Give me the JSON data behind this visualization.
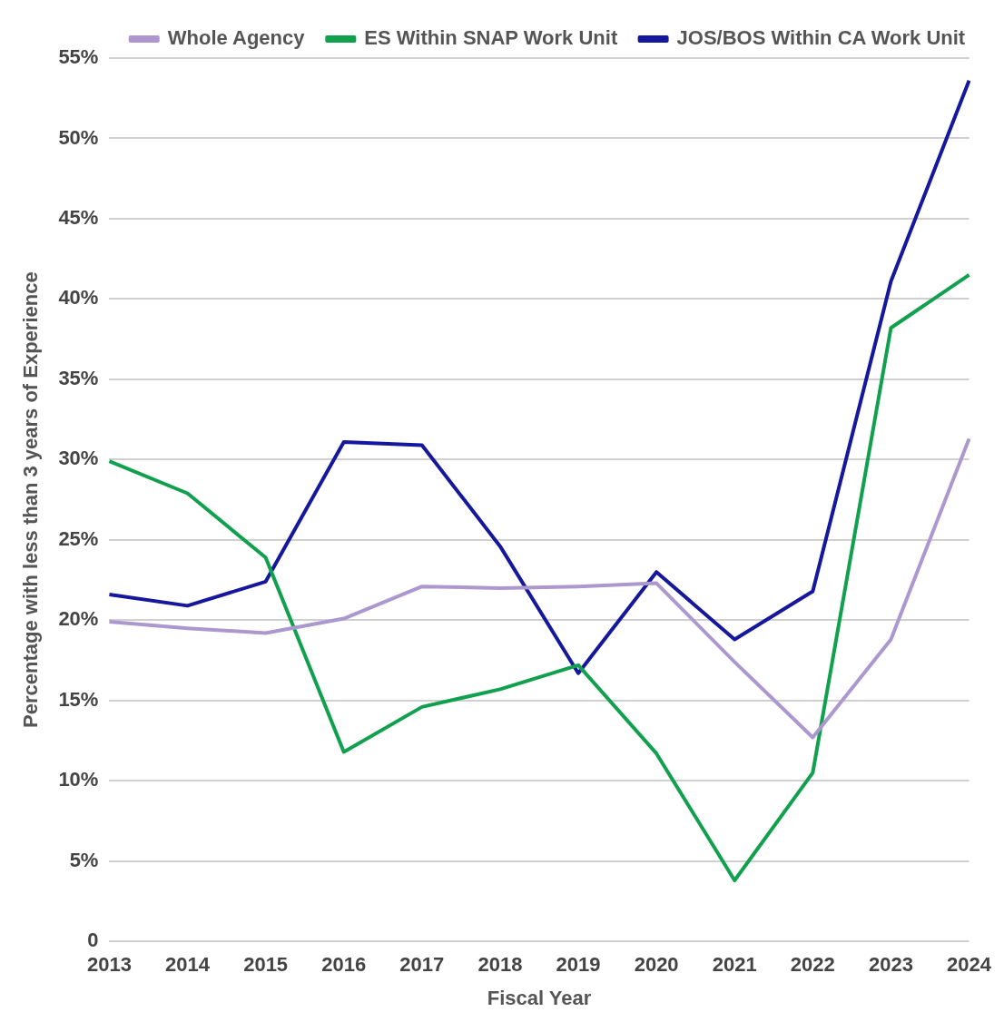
{
  "chart_data": {
    "type": "line",
    "xlabel": "Fiscal Year",
    "ylabel": "Percentage with less than 3 years of Experience",
    "categories": [
      "2013",
      "2014",
      "2015",
      "2016",
      "2017",
      "2018",
      "2019",
      "2020",
      "2021",
      "2022",
      "2023",
      "2024"
    ],
    "series": [
      {
        "name": "Whole Agency",
        "color": "#ac98cf",
        "values": [
          19.9,
          19.5,
          19.2,
          20.1,
          22.1,
          22.0,
          22.1,
          22.3,
          17.4,
          12.7,
          18.8,
          31.3
        ]
      },
      {
        "name": "ES Within SNAP Work Unit",
        "color": "#10a04e",
        "values": [
          29.9,
          27.9,
          23.9,
          11.8,
          14.6,
          15.7,
          17.2,
          11.7,
          3.8,
          10.5,
          38.2,
          41.5
        ]
      },
      {
        "name": "JOS/BOS Within CA Work Unit",
        "color": "#15179c",
        "values": [
          21.6,
          20.9,
          22.4,
          31.1,
          30.9,
          24.6,
          16.7,
          23.0,
          18.8,
          21.8,
          41.1,
          53.6
        ]
      }
    ],
    "ylim": [
      0,
      55
    ],
    "yticks": [
      {
        "value": 0,
        "label": "0"
      },
      {
        "value": 5,
        "label": "5%"
      },
      {
        "value": 10,
        "label": "10%"
      },
      {
        "value": 15,
        "label": "15%"
      },
      {
        "value": 20,
        "label": "20%"
      },
      {
        "value": 25,
        "label": "25%"
      },
      {
        "value": 30,
        "label": "30%"
      },
      {
        "value": 35,
        "label": "35%"
      },
      {
        "value": 40,
        "label": "40%"
      },
      {
        "value": 45,
        "label": "45%"
      },
      {
        "value": 50,
        "label": "50%"
      },
      {
        "value": 55,
        "label": "55%"
      }
    ],
    "grid": "y",
    "legend": "top",
    "marker": "none",
    "line_style": "solid"
  }
}
